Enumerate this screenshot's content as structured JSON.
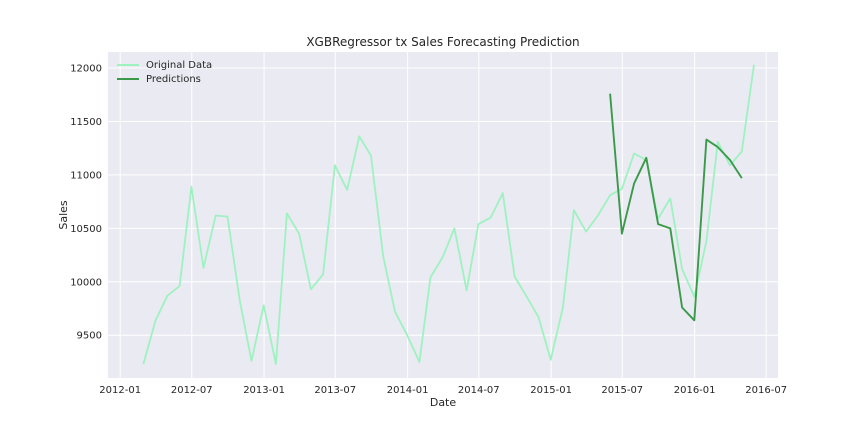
{
  "chart_data": {
    "type": "line",
    "title": "XGBRegressor tx Sales Forecasting Prediction",
    "xlabel": "Date",
    "ylabel": "Sales",
    "xlim": [
      "2011-12-01",
      "2016-07-31"
    ],
    "ylim": [
      9100,
      12150
    ],
    "x_ticks": [
      "2012-01",
      "2012-07",
      "2013-01",
      "2013-07",
      "2014-01",
      "2014-07",
      "2015-01",
      "2015-07",
      "2016-01",
      "2016-07"
    ],
    "y_ticks": [
      9500,
      10000,
      10500,
      11000,
      11500,
      12000
    ],
    "grid": true,
    "legend_position": "top-left",
    "series": [
      {
        "name": "Original Data",
        "color": "#9ef2c0",
        "x": [
          "2012-02-29",
          "2012-03-31",
          "2012-04-30",
          "2012-05-31",
          "2012-06-30",
          "2012-07-31",
          "2012-08-31",
          "2012-09-30",
          "2012-10-31",
          "2012-11-30",
          "2012-12-31",
          "2013-01-31",
          "2013-02-28",
          "2013-03-31",
          "2013-04-30",
          "2013-05-31",
          "2013-06-30",
          "2013-07-31",
          "2013-08-31",
          "2013-09-30",
          "2013-10-31",
          "2013-11-30",
          "2013-12-31",
          "2014-01-31",
          "2014-02-28",
          "2014-03-31",
          "2014-04-30",
          "2014-05-31",
          "2014-06-30",
          "2014-07-31",
          "2014-08-31",
          "2014-09-30",
          "2014-10-31",
          "2014-11-30",
          "2014-12-31",
          "2015-01-31",
          "2015-02-28",
          "2015-03-31",
          "2015-04-30",
          "2015-05-31",
          "2015-06-30",
          "2015-07-31",
          "2015-08-31",
          "2015-09-30",
          "2015-10-31",
          "2015-11-30",
          "2015-12-31",
          "2016-01-31",
          "2016-02-29",
          "2016-03-31",
          "2016-04-30",
          "2016-05-31"
        ],
        "values": [
          9230,
          9640,
          9870,
          9960,
          10890,
          10130,
          10620,
          10610,
          9830,
          9260,
          9780,
          9230,
          10640,
          10450,
          9930,
          10070,
          11090,
          10860,
          11360,
          11180,
          10240,
          9720,
          9500,
          9250,
          10040,
          10230,
          10500,
          9920,
          10540,
          10600,
          10830,
          10050,
          9860,
          9670,
          9270,
          9760,
          10670,
          10470,
          10620,
          10810,
          10870,
          11200,
          11140,
          10590,
          10780,
          10120,
          9860,
          10380,
          11310,
          11090,
          11220,
          12030
        ]
      },
      {
        "name": "Predictions",
        "color": "#3a9a4a",
        "x": [
          "2015-05-31",
          "2015-06-30",
          "2015-07-31",
          "2015-08-31",
          "2015-09-30",
          "2015-10-31",
          "2015-11-30",
          "2015-12-31",
          "2016-01-31",
          "2016-02-29",
          "2016-03-31",
          "2016-04-30"
        ],
        "values": [
          11760,
          10450,
          10920,
          11160,
          10540,
          10500,
          9760,
          9640,
          11330,
          11260,
          11140,
          10970
        ]
      }
    ]
  }
}
